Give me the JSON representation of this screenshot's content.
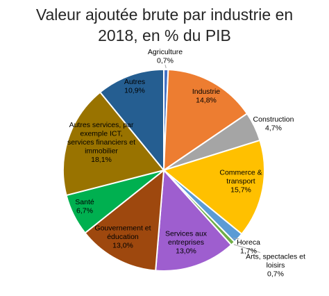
{
  "chart_data": {
    "type": "pie",
    "title_line1": "Valeur ajoutée brute par industrie en",
    "title_line2": "2018, en % du PIB",
    "slices": [
      {
        "label": [
          "Agriculture"
        ],
        "value": 0.7,
        "value_text": "0,7%",
        "color": "#4472c4"
      },
      {
        "label": [
          "Industrie"
        ],
        "value": 14.8,
        "value_text": "14,8%",
        "color": "#ed7d31"
      },
      {
        "label": [
          "Construction"
        ],
        "value": 4.7,
        "value_text": "4,7%",
        "color": "#a5a5a5"
      },
      {
        "label": [
          "Commerce &",
          "transport"
        ],
        "value": 15.7,
        "value_text": "15,7%",
        "color": "#ffc000"
      },
      {
        "label": [
          "Horeca"
        ],
        "value": 1.7,
        "value_text": "1,7%",
        "color": "#5b9bd5"
      },
      {
        "label": [
          "Arts, spectacles et",
          "loisirs"
        ],
        "value": 0.7,
        "value_text": "0,7%",
        "color": "#70ad47"
      },
      {
        "label": [
          "Services aux",
          "entreprises"
        ],
        "value": 13.0,
        "value_text": "13,0%",
        "color": "#9e5ecf"
      },
      {
        "label": [
          "Gouvernement et",
          "éducation"
        ],
        "value": 13.0,
        "value_text": "13,0%",
        "color": "#9e480e"
      },
      {
        "label": [
          "Santé"
        ],
        "value": 6.7,
        "value_text": "6,7%",
        "color": "#00b050"
      },
      {
        "label": [
          "Autres services, par",
          "exemple ICT,",
          "services financiers et",
          "immobilier"
        ],
        "value": 18.1,
        "value_text": "18,1%",
        "color": "#997300"
      },
      {
        "label": [
          "Autres"
        ],
        "value": 10.9,
        "value_text": "10,9%",
        "color": "#255e91"
      }
    ]
  }
}
